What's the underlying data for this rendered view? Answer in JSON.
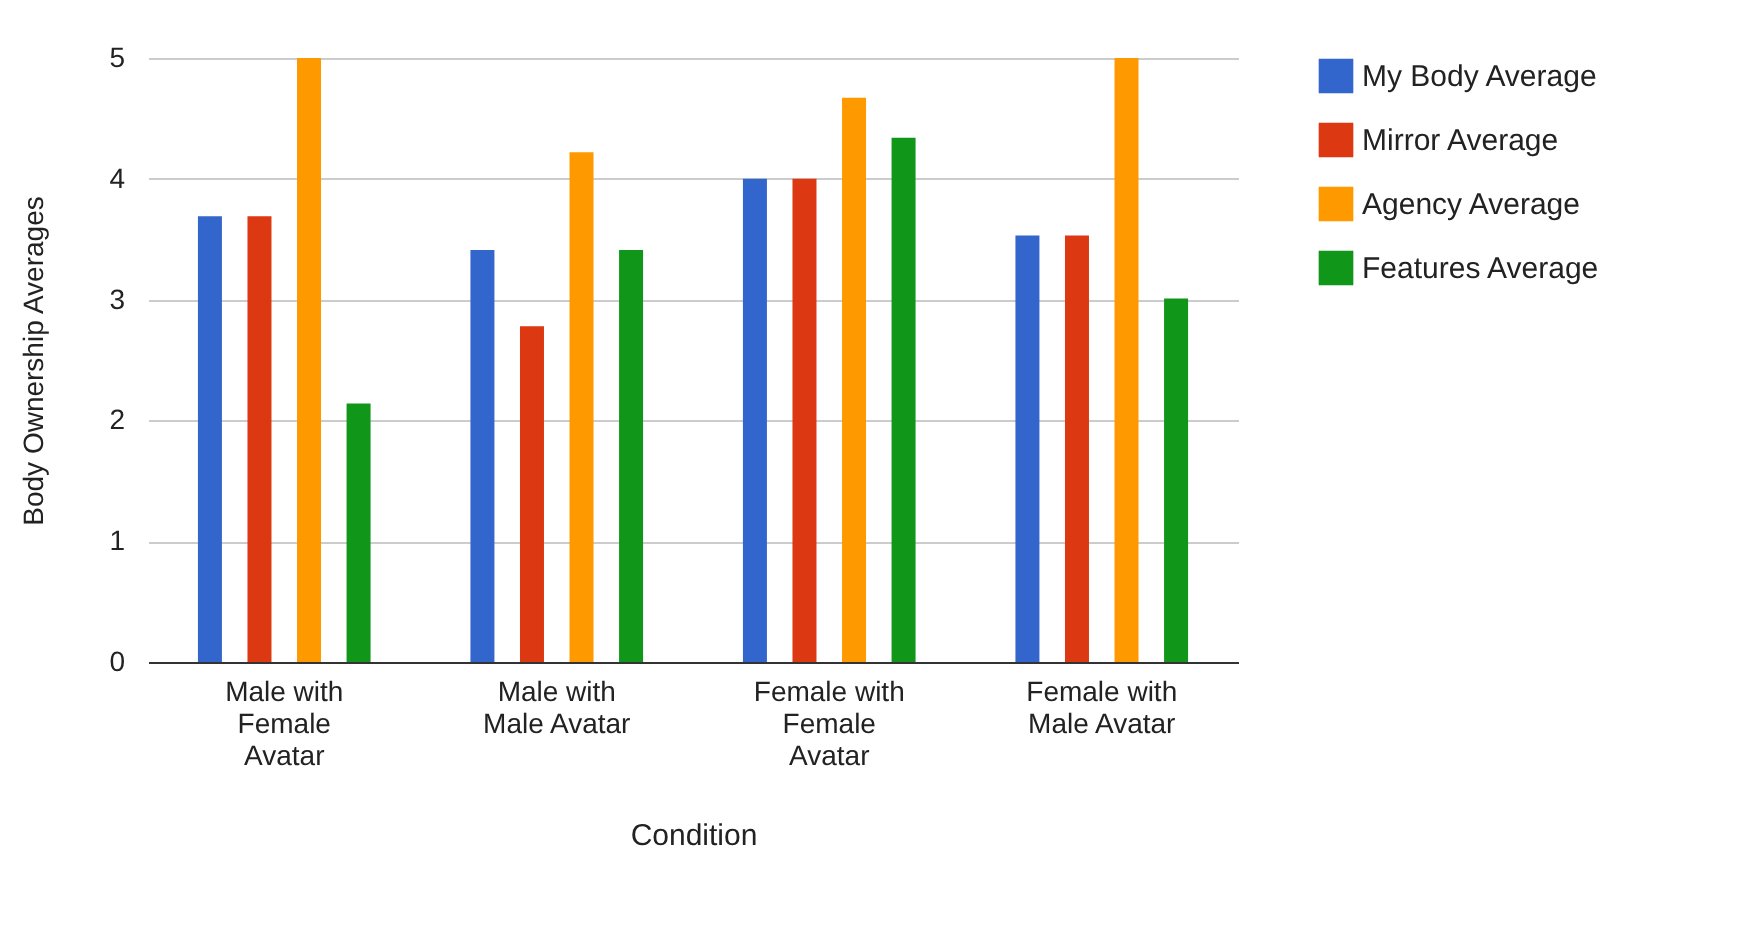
{
  "chart_data": {
    "type": "bar",
    "xlabel": "Condition",
    "ylabel": "Body Ownership Averages",
    "categories": [
      "Male with Female Avatar",
      "Male with Male Avatar",
      "Female with Female Avatar",
      "Female with Male Avatar"
    ],
    "series": [
      {
        "name": "My Body Average",
        "color": "#3366cc",
        "values": [
          3.69,
          3.41,
          4.0,
          3.53
        ]
      },
      {
        "name": "Mirror Average",
        "color": "#dc3912",
        "values": [
          3.69,
          2.78,
          4.0,
          3.53
        ]
      },
      {
        "name": "Agency Average",
        "color": "#ff9900",
        "values": [
          5,
          4.22,
          4.67,
          5
        ]
      },
      {
        "name": "Features Average",
        "color": "#109618",
        "values": [
          2.14,
          3.41,
          4.34,
          3.01
        ]
      }
    ],
    "ylim": [
      0,
      5
    ],
    "yticks": [
      0,
      1,
      2,
      3,
      4,
      5
    ],
    "grid": "y",
    "legend": "right"
  }
}
